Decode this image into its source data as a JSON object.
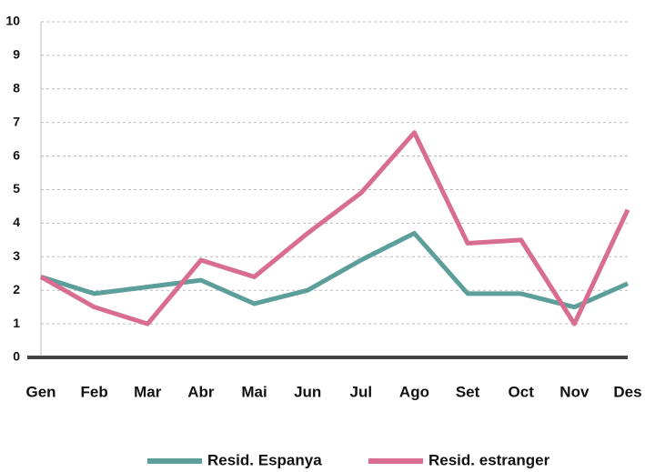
{
  "chart_data": {
    "type": "line",
    "categories": [
      "Gen",
      "Feb",
      "Mar",
      "Abr",
      "Mai",
      "Jun",
      "Jul",
      "Ago",
      "Set",
      "Oct",
      "Nov",
      "Des"
    ],
    "series": [
      {
        "name": "Resid. Espanya",
        "color": "#5b9e9a",
        "values": [
          2.4,
          1.9,
          2.1,
          2.3,
          1.6,
          2.0,
          2.9,
          3.7,
          1.9,
          1.9,
          1.5,
          2.2
        ]
      },
      {
        "name": "Resid. estranger",
        "color": "#d86d91",
        "values": [
          2.4,
          1.5,
          1.0,
          2.9,
          2.4,
          3.7,
          4.9,
          6.7,
          3.4,
          3.5,
          1.0,
          4.4
        ]
      }
    ],
    "ylim": [
      0,
      10
    ],
    "yticks": [
      0,
      1,
      2,
      3,
      4,
      5,
      6,
      7,
      8,
      9,
      10
    ],
    "grid": true,
    "legend": "bottom"
  }
}
